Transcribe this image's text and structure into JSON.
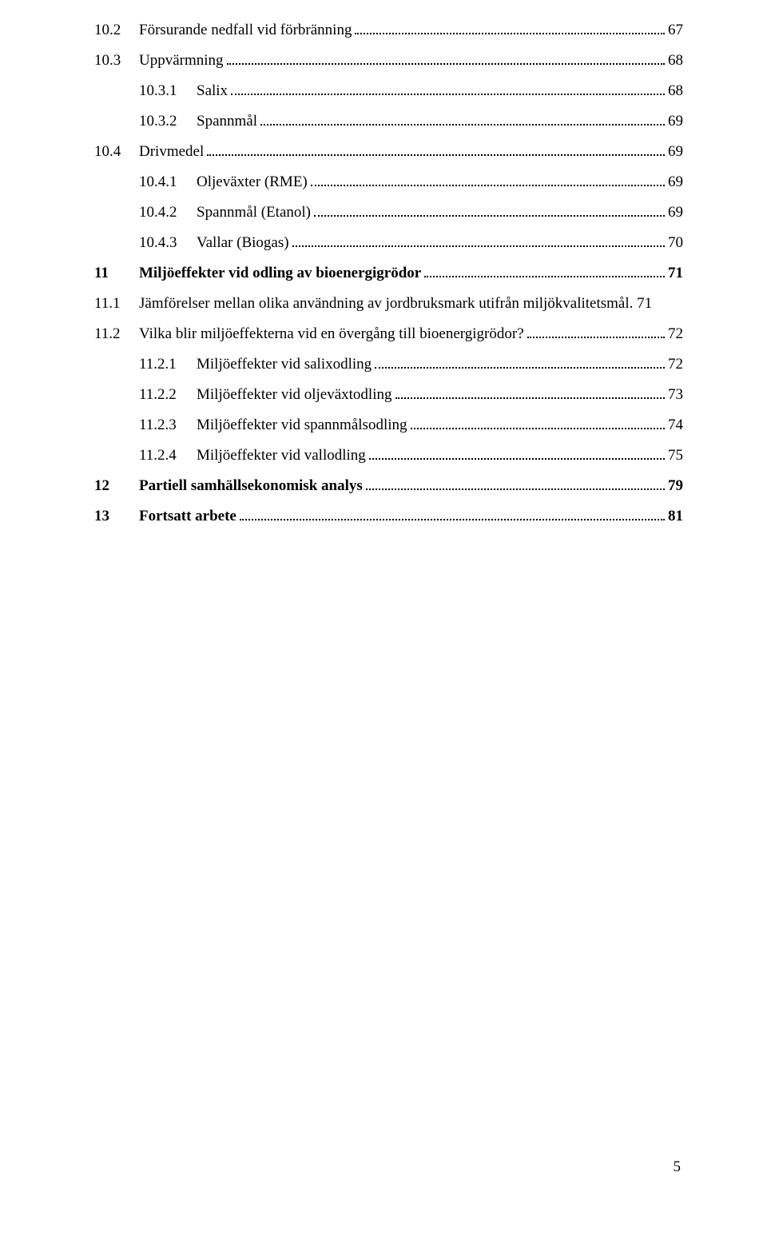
{
  "toc": [
    {
      "level": 2,
      "num": "10.2",
      "title": "Försurande nedfall vid förbränning",
      "page": "67"
    },
    {
      "level": 2,
      "num": "10.3",
      "title": "Uppvärmning",
      "page": "68"
    },
    {
      "level": 3,
      "num": "10.3.1",
      "title": "Salix",
      "page": "68"
    },
    {
      "level": 3,
      "num": "10.3.2",
      "title": "Spannmål",
      "page": "69"
    },
    {
      "level": 2,
      "num": "10.4",
      "title": "Drivmedel",
      "page": "69"
    },
    {
      "level": 3,
      "num": "10.4.1",
      "title": "Oljeväxter (RME)",
      "page": "69"
    },
    {
      "level": 3,
      "num": "10.4.2",
      "title": "Spannmål (Etanol)",
      "page": "69"
    },
    {
      "level": 3,
      "num": "10.4.3",
      "title": "Vallar (Biogas)",
      "page": "70"
    },
    {
      "level": 1,
      "num": "11",
      "title": "Miljöeffekter vid odling av bioenergigrödor",
      "page": "71"
    },
    {
      "level": 2,
      "num": "11.1",
      "title": "Jämförelser mellan olika användning av jordbruksmark utifrån miljökvalitetsmål.",
      "page": "71",
      "nodots": true
    },
    {
      "level": 2,
      "num": "11.2",
      "title": "Vilka blir miljöeffekterna vid en övergång till bioenergigrödor?",
      "page": "72"
    },
    {
      "level": 3,
      "num": "11.2.1",
      "title": "Miljöeffekter vid salixodling",
      "page": "72"
    },
    {
      "level": 3,
      "num": "11.2.2",
      "title": "Miljöeffekter vid oljeväxtodling",
      "page": "73"
    },
    {
      "level": 3,
      "num": "11.2.3",
      "title": "Miljöeffekter vid spannmålsodling",
      "page": "74"
    },
    {
      "level": 3,
      "num": "11.2.4",
      "title": "Miljöeffekter vid vallodling",
      "page": "75"
    },
    {
      "level": 1,
      "num": "12",
      "title": "Partiell samhällsekonomisk analys",
      "page": "79"
    },
    {
      "level": 1,
      "num": "13",
      "title": "Fortsatt arbete",
      "page": "81"
    }
  ],
  "pageNumber": "5"
}
